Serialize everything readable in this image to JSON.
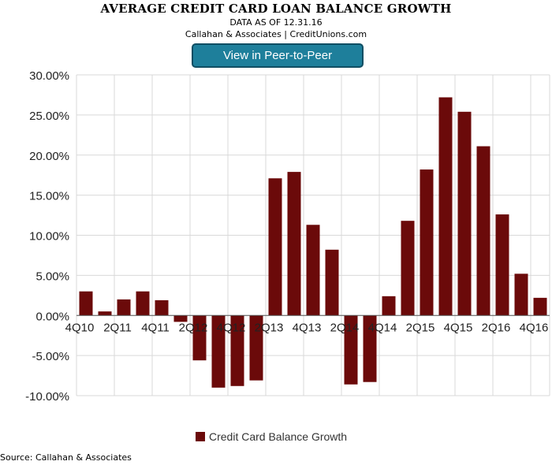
{
  "header": {
    "title": "AVERAGE CREDIT CARD LOAN BALANCE GROWTH",
    "subtitle": "DATA AS OF 12.31.16",
    "subtitle2": "Callahan & Associates | CreditUnions.com",
    "button_label": "View in Peer-to-Peer"
  },
  "footer": {
    "source": "Source: Callahan & Associates"
  },
  "colors": {
    "bar": "#6b0a0a",
    "button": "#1e7f9b",
    "grid": "#d9d9d9"
  },
  "chart_data": {
    "type": "bar",
    "categories": [
      "4Q10",
      "1Q11",
      "2Q11",
      "3Q11",
      "4Q11",
      "1Q12",
      "2Q12",
      "3Q12",
      "4Q12",
      "1Q13",
      "2Q13",
      "3Q13",
      "4Q13",
      "1Q14",
      "2Q14",
      "3Q14",
      "4Q14",
      "1Q15",
      "2Q15",
      "3Q15",
      "4Q15",
      "1Q16",
      "2Q16",
      "3Q16",
      "4Q16"
    ],
    "tick_labels": [
      "4Q10",
      "2Q11",
      "4Q11",
      "2Q12",
      "4Q12",
      "2Q13",
      "4Q13",
      "2Q14",
      "4Q14",
      "2Q15",
      "4Q15",
      "2Q16",
      "4Q16"
    ],
    "series": [
      {
        "name": "Credit Card Balance Growth",
        "values": [
          3.0,
          0.5,
          2.0,
          3.0,
          1.9,
          -0.8,
          -5.6,
          -9.0,
          -8.8,
          -8.1,
          17.1,
          17.9,
          11.3,
          8.2,
          -8.6,
          -8.3,
          2.4,
          11.8,
          18.2,
          27.2,
          25.4,
          21.1,
          12.6,
          5.2,
          2.2
        ]
      }
    ],
    "ylim": [
      -10,
      30
    ],
    "yticks": [
      "-10.00%",
      "-5.00%",
      "0.00%",
      "5.00%",
      "10.00%",
      "15.00%",
      "20.00%",
      "25.00%",
      "30.00%"
    ],
    "grid": true,
    "legend_position": "bottom"
  }
}
